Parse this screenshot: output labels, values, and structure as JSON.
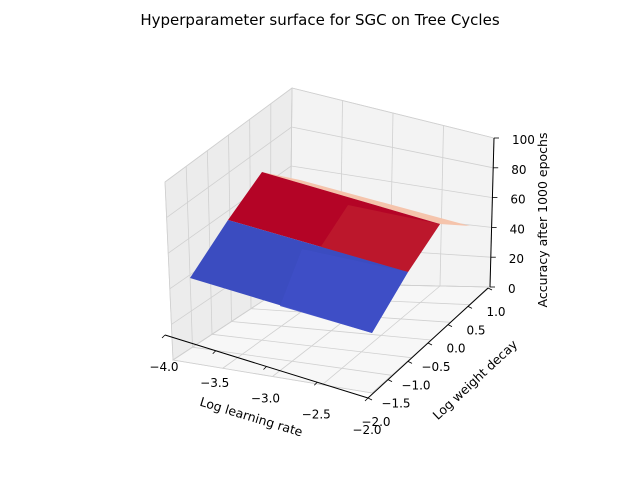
{
  "chart_data": {
    "type": "surface",
    "title": "Hyperparameter surface for SGC on Tree Cycles",
    "xlabel": "Log learning rate",
    "ylabel": "Log weight decay",
    "zlabel": "Accuracy after 1000 epochs",
    "xlim": [
      -4.0,
      -2.0
    ],
    "ylim": [
      -2.0,
      1.0
    ],
    "zlim": [
      0,
      100
    ],
    "x_ticks": [
      "−4.0",
      "−3.5",
      "−3.0",
      "−2.5",
      "−2.0"
    ],
    "y_ticks": [
      "−2.0",
      "−1.5",
      "−1.0",
      "−0.5",
      "0.0",
      "0.5",
      "1.0"
    ],
    "z_ticks": [
      "0",
      "20",
      "40",
      "60",
      "80",
      "100"
    ],
    "grid": true,
    "colormap": "coolwarm",
    "surface_colors": {
      "high": "#b40426",
      "high_alt": "#c0202f",
      "low": "#3b4cc0",
      "low_alt": "#4056c8",
      "mid": "#f5c4ac"
    }
  }
}
